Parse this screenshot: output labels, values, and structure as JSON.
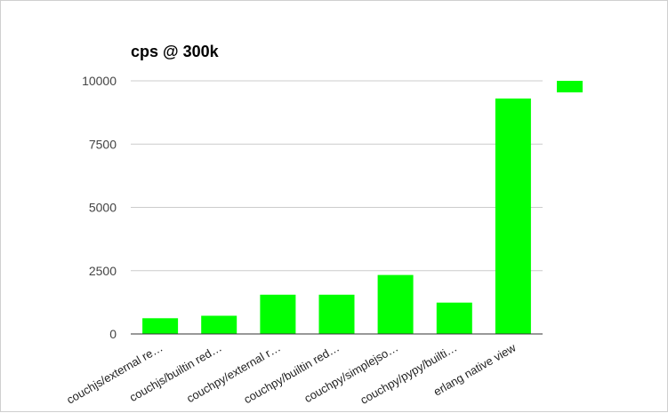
{
  "chart_data": {
    "type": "bar",
    "title": "cps @ 300k",
    "categories": [
      "couchjs/external re…",
      "couchjs/builtin red…",
      "couchpy/external r…",
      "couchpy/builtin red…",
      "couchpy/simplejso…",
      "couchpy/pypy/builti…",
      "erlang native view"
    ],
    "series": [
      {
        "values": [
          620,
          720,
          1550,
          1550,
          2330,
          1240,
          9300
        ]
      }
    ],
    "ylim": [
      0,
      10000
    ],
    "yticks": [
      "0",
      "2500",
      "5000",
      "7500",
      "10000"
    ],
    "ytick_values": [
      0,
      2500,
      5000,
      7500,
      10000
    ],
    "grid": true,
    "legend": "top-right",
    "colors": {
      "bar": "#00ff00",
      "grid": "#cccccc",
      "axis": "#333333"
    }
  }
}
